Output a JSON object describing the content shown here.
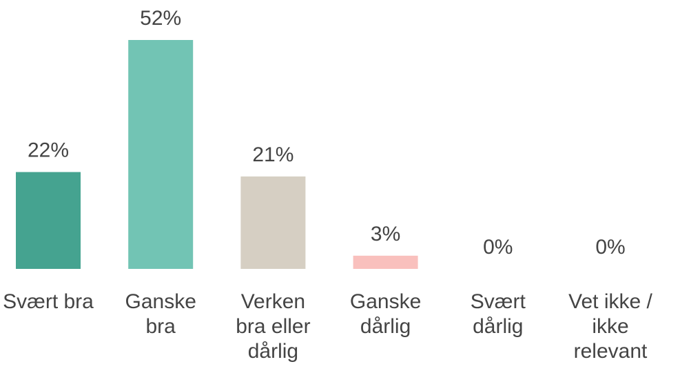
{
  "chart_data": {
    "type": "bar",
    "categories": [
      "Svært bra",
      "Ganske bra",
      "Verken bra eller dårlig",
      "Ganske dårlig",
      "Svært dårlig",
      "Vet ikke / ikke relevant"
    ],
    "values": [
      22,
      52,
      21,
      3,
      0,
      0
    ],
    "value_labels": [
      "22%",
      "52%",
      "21%",
      "3%",
      "0%",
      "0%"
    ],
    "colors": [
      "#45a390",
      "#72c4b4",
      "#d6cfc3",
      "#f9c0bd",
      "#f08a88",
      "#ffffff"
    ]
  }
}
